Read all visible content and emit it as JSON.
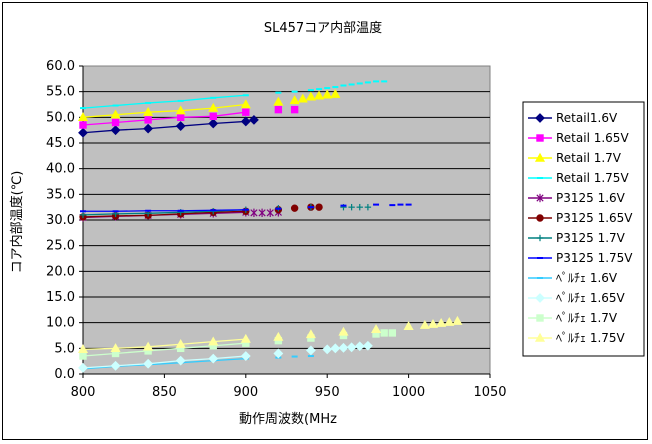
{
  "chart_data": {
    "type": "scatter",
    "title": "SL457コア内部温度",
    "xlabel": "動作周波数(MHz",
    "ylabel": "コア内部温度(℃)",
    "xlim": [
      800,
      1050
    ],
    "ylim": [
      0,
      60
    ],
    "xticks": [
      "800",
      "850",
      "900",
      "950",
      "1000",
      "1050"
    ],
    "yticks": [
      "0.0",
      "5.0",
      "10.0",
      "15.0",
      "20.0",
      "25.0",
      "30.0",
      "35.0",
      "40.0",
      "45.0",
      "50.0",
      "55.0",
      "60.0"
    ],
    "grid": "horizontal",
    "plot_background": "#c0c0c0",
    "legend_position": "right",
    "series": [
      {
        "name": "Retail1.6V",
        "color": "#000080",
        "marker": "diamond",
        "x": [
          800,
          820,
          840,
          860,
          880,
          900,
          905
        ],
        "y": [
          47.0,
          47.5,
          47.8,
          48.3,
          48.8,
          49.2,
          49.5
        ]
      },
      {
        "name": "Retail 1.65V",
        "color": "#ff00ff",
        "marker": "square",
        "x": [
          800,
          820,
          840,
          860,
          880,
          900,
          920,
          930
        ],
        "y": [
          48.5,
          49.0,
          49.5,
          50.0,
          50.2,
          51.0,
          51.5,
          51.5
        ]
      },
      {
        "name": "Retail 1.7V",
        "color": "#ffff00",
        "marker": "triangle",
        "x": [
          800,
          820,
          840,
          860,
          880,
          900,
          920,
          930,
          935,
          940,
          945,
          950,
          955
        ],
        "y": [
          50.0,
          50.5,
          51.0,
          51.3,
          51.8,
          52.5,
          53.0,
          53.3,
          53.6,
          54.0,
          54.2,
          54.4,
          54.5
        ]
      },
      {
        "name": "Retail 1.75V",
        "color": "#00ffff",
        "marker": "line",
        "x": [
          800,
          820,
          840,
          860,
          880,
          900,
          920,
          930,
          940,
          945,
          950,
          955,
          960,
          965,
          970,
          975,
          980,
          985
        ],
        "y": [
          51.8,
          52.3,
          52.8,
          53.2,
          53.8,
          54.3,
          54.8,
          55.0,
          55.3,
          55.5,
          55.7,
          55.9,
          56.2,
          56.4,
          56.6,
          56.8,
          57.0,
          57.0
        ]
      },
      {
        "name": "P3125 1.6V",
        "color": "#800080",
        "marker": "asterisk",
        "x": [
          800,
          820,
          840,
          860,
          880,
          900,
          905,
          910,
          915,
          920
        ],
        "y": [
          30.5,
          30.7,
          30.9,
          31.1,
          31.3,
          31.5,
          31.4,
          31.4,
          31.4,
          31.5
        ]
      },
      {
        "name": "P3125 1.65V",
        "color": "#800000",
        "marker": "circle",
        "x": [
          800,
          820,
          840,
          860,
          880,
          900,
          920,
          930,
          940,
          945
        ],
        "y": [
          30.6,
          30.8,
          30.9,
          31.2,
          31.5,
          31.7,
          32.0,
          32.3,
          32.5,
          32.5
        ]
      },
      {
        "name": "P3125 1.7V",
        "color": "#008080",
        "marker": "plus",
        "x": [
          800,
          820,
          840,
          860,
          880,
          900,
          920,
          940,
          960,
          965,
          970,
          975
        ],
        "y": [
          31.0,
          31.2,
          31.3,
          31.5,
          31.7,
          32.0,
          32.3,
          32.5,
          32.5,
          32.5,
          32.5,
          32.5
        ]
      },
      {
        "name": "P3125 1.75V",
        "color": "#0000ff",
        "marker": "line",
        "x": [
          800,
          820,
          840,
          860,
          880,
          900,
          920,
          940,
          960,
          980,
          990,
          995,
          1000
        ],
        "y": [
          31.7,
          31.7,
          31.8,
          31.8,
          31.9,
          32.0,
          32.2,
          32.5,
          32.8,
          33.0,
          32.9,
          33.0,
          33.0
        ]
      },
      {
        "name": "ﾍﾟﾙﾁｪ 1.6V",
        "color": "#33ccff",
        "marker": "line",
        "x": [
          800,
          820,
          840,
          860,
          880,
          900,
          920,
          930,
          940
        ],
        "y": [
          1.0,
          1.5,
          1.8,
          2.2,
          2.6,
          3.0,
          3.2,
          3.4,
          3.5
        ]
      },
      {
        "name": "ﾍﾟﾙﾁｪ 1.65V",
        "color": "#ccffff",
        "marker": "diamond",
        "x": [
          800,
          820,
          840,
          860,
          880,
          900,
          920,
          940,
          950,
          955,
          960,
          965,
          970,
          975
        ],
        "y": [
          1.2,
          1.6,
          2.0,
          2.6,
          3.0,
          3.5,
          4.0,
          4.6,
          4.8,
          5.0,
          5.1,
          5.2,
          5.4,
          5.5
        ]
      },
      {
        "name": "ﾍﾟﾙﾁｪ 1.7V",
        "color": "#ccffcc",
        "marker": "square",
        "x": [
          800,
          820,
          840,
          860,
          880,
          900,
          920,
          940,
          960,
          980,
          985,
          990
        ],
        "y": [
          3.5,
          4.0,
          4.5,
          5.0,
          5.5,
          6.0,
          6.5,
          7.0,
          7.5,
          7.8,
          8.0,
          8.0
        ]
      },
      {
        "name": "ﾍﾟﾙﾁｪ 1.75V",
        "color": "#ffff99",
        "marker": "triangle",
        "x": [
          800,
          820,
          840,
          860,
          880,
          900,
          920,
          940,
          960,
          980,
          1000,
          1010,
          1015,
          1020,
          1025,
          1030
        ],
        "y": [
          4.8,
          5.0,
          5.3,
          5.8,
          6.3,
          6.8,
          7.2,
          7.7,
          8.2,
          8.7,
          9.3,
          9.5,
          9.7,
          9.9,
          10.1,
          10.3
        ]
      }
    ]
  }
}
